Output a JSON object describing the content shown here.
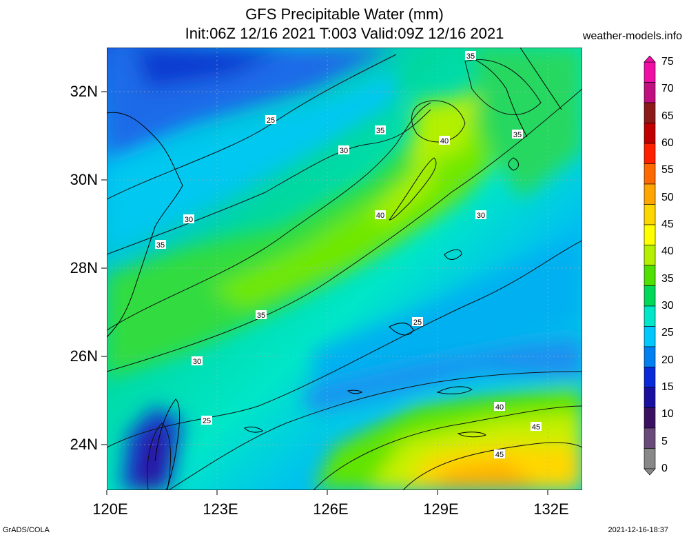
{
  "header": {
    "title_line1": "GFS Precipitable Water (mm)",
    "title_line2": "Init:06Z 12/16 2021 T:003 Valid:09Z 12/16 2021",
    "site": "weather-models.info"
  },
  "map": {
    "lat_labels": [
      "32N",
      "30N",
      "28N",
      "26N",
      "24N"
    ],
    "lon_labels": [
      "120E",
      "123E",
      "126E",
      "129E",
      "132E"
    ],
    "contour_labels": [
      "35",
      "25",
      "35",
      "40",
      "35",
      "30",
      "40",
      "30",
      "30",
      "35",
      "35",
      "25",
      "30",
      "25",
      "40",
      "45",
      "45"
    ]
  },
  "colorbar": {
    "ticks": [
      "75",
      "70",
      "65",
      "60",
      "55",
      "50",
      "45",
      "40",
      "35",
      "30",
      "25",
      "20",
      "15",
      "10",
      "5",
      "0"
    ],
    "colors": [
      "#f00fa5",
      "#c01080",
      "#8c1a1a",
      "#c00000",
      "#ff2000",
      "#ff6a00",
      "#ffa500",
      "#ffd700",
      "#ffff00",
      "#b4f000",
      "#50e000",
      "#00d85a",
      "#00e6c8",
      "#00c8ff",
      "#0080f0",
      "#0a2ad8",
      "#1a10a0",
      "#3a1060",
      "#6a4a7a",
      "#888888"
    ]
  },
  "footer": {
    "left": "GrADS/COLA",
    "right": "2021-12-16-18:37"
  }
}
